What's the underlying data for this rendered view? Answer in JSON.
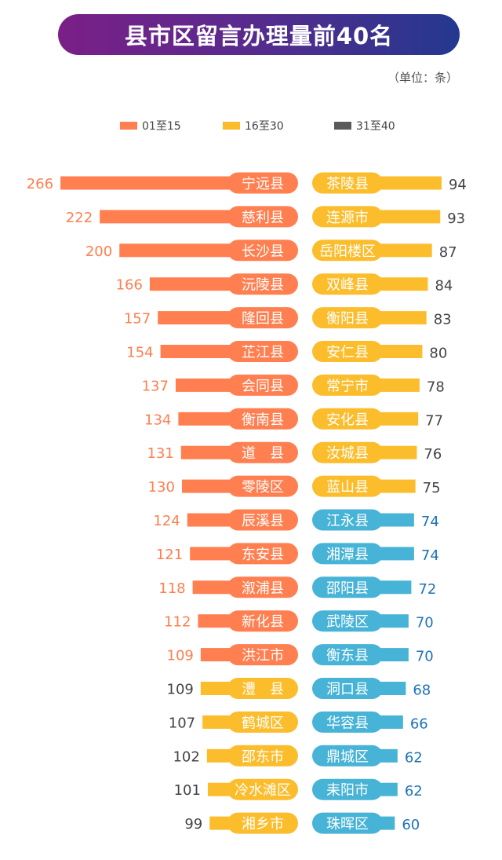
{
  "title": "县市区留言办理量前40名",
  "unit": "（单位：条）",
  "colors": {
    "group1": "#ff7f50",
    "group2": "#fbbd2c",
    "group3": "#47b3d6",
    "group3_legend": "#5a5a5a",
    "group3_value": "#1d73b8"
  },
  "legend": [
    {
      "label": "01至15",
      "color": "#ff7f50"
    },
    {
      "label": "16至30",
      "color": "#fbbd2c"
    },
    {
      "label": "31至40",
      "color": "#5a5a5a"
    }
  ],
  "chart_data": {
    "type": "bar",
    "left": [
      {
        "name": "宁远县",
        "value": 266,
        "group": 1
      },
      {
        "name": "慈利县",
        "value": 222,
        "group": 1
      },
      {
        "name": "长沙县",
        "value": 200,
        "group": 1
      },
      {
        "name": "沅陵县",
        "value": 166,
        "group": 1
      },
      {
        "name": "隆回县",
        "value": 157,
        "group": 1
      },
      {
        "name": "芷江县",
        "value": 154,
        "group": 1
      },
      {
        "name": "会同县",
        "value": 137,
        "group": 1
      },
      {
        "name": "衡南县",
        "value": 134,
        "group": 1
      },
      {
        "name": "道　县",
        "value": 131,
        "group": 1
      },
      {
        "name": "零陵区",
        "value": 130,
        "group": 1
      },
      {
        "name": "辰溪县",
        "value": 124,
        "group": 1
      },
      {
        "name": "东安县",
        "value": 121,
        "group": 1
      },
      {
        "name": "溆浦县",
        "value": 118,
        "group": 1
      },
      {
        "name": "新化县",
        "value": 112,
        "group": 1
      },
      {
        "name": "洪江市",
        "value": 109,
        "group": 1
      },
      {
        "name": "澧　县",
        "value": 109,
        "group": 2
      },
      {
        "name": "鹤城区",
        "value": 107,
        "group": 2
      },
      {
        "name": "邵东市",
        "value": 102,
        "group": 2
      },
      {
        "name": "冷水滩区",
        "value": 101,
        "group": 2
      },
      {
        "name": "湘乡市",
        "value": 99,
        "group": 2
      }
    ],
    "right": [
      {
        "name": "茶陵县",
        "value": 94,
        "group": 2
      },
      {
        "name": "连源市",
        "value": 93,
        "group": 2
      },
      {
        "name": "岳阳楼区",
        "value": 87,
        "group": 2
      },
      {
        "name": "双峰县",
        "value": 84,
        "group": 2
      },
      {
        "name": "衡阳县",
        "value": 83,
        "group": 2
      },
      {
        "name": "安仁县",
        "value": 80,
        "group": 2
      },
      {
        "name": "常宁市",
        "value": 78,
        "group": 2
      },
      {
        "name": "安化县",
        "value": 77,
        "group": 2
      },
      {
        "name": "汝城县",
        "value": 76,
        "group": 2
      },
      {
        "name": "蓝山县",
        "value": 75,
        "group": 2
      },
      {
        "name": "江永县",
        "value": 74,
        "group": 3
      },
      {
        "name": "湘潭县",
        "value": 74,
        "group": 3
      },
      {
        "name": "邵阳县",
        "value": 72,
        "group": 3
      },
      {
        "name": "武陵区",
        "value": 70,
        "group": 3
      },
      {
        "name": "衡东县",
        "value": 70,
        "group": 3
      },
      {
        "name": "洞口县",
        "value": 68,
        "group": 3
      },
      {
        "name": "华容县",
        "value": 66,
        "group": 3
      },
      {
        "name": "鼎城区",
        "value": 62,
        "group": 3
      },
      {
        "name": "耒阳市",
        "value": 62,
        "group": 3
      },
      {
        "name": "珠晖区",
        "value": 60,
        "group": 3
      }
    ]
  }
}
